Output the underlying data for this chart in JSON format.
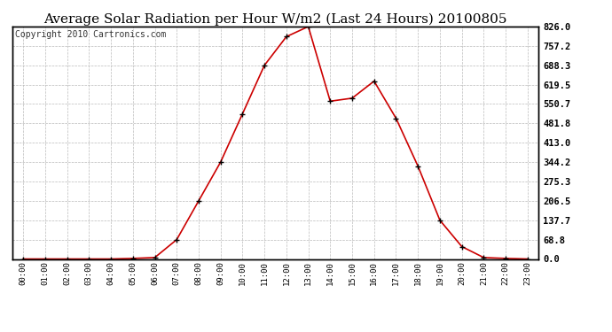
{
  "title": "Average Solar Radiation per Hour W/m2 (Last 24 Hours) 20100805",
  "copyright": "Copyright 2010 Cartronics.com",
  "x_labels": [
    "00:00",
    "01:00",
    "02:00",
    "03:00",
    "04:00",
    "05:00",
    "06:00",
    "07:00",
    "08:00",
    "09:00",
    "10:00",
    "11:00",
    "12:00",
    "13:00",
    "14:00",
    "15:00",
    "16:00",
    "17:00",
    "18:00",
    "19:00",
    "20:00",
    "21:00",
    "22:00",
    "23:00"
  ],
  "y_values": [
    0,
    0,
    0,
    0,
    0,
    2,
    5,
    68.8,
    206.5,
    344.2,
    516.0,
    688.3,
    790.0,
    826.0,
    560.7,
    571.5,
    632.0,
    500.0,
    330.0,
    137.7,
    44.0,
    5,
    2,
    0
  ],
  "y_ticks": [
    0.0,
    68.8,
    137.7,
    206.5,
    275.3,
    344.2,
    413.0,
    481.8,
    550.7,
    619.5,
    688.3,
    757.2,
    826.0
  ],
  "line_color": "#cc0000",
  "marker": "+",
  "marker_color": "#000000",
  "background_color": "#ffffff",
  "grid_color": "#bbbbbb",
  "title_fontsize": 11,
  "copyright_fontsize": 7,
  "ylim": [
    0,
    826.0
  ]
}
